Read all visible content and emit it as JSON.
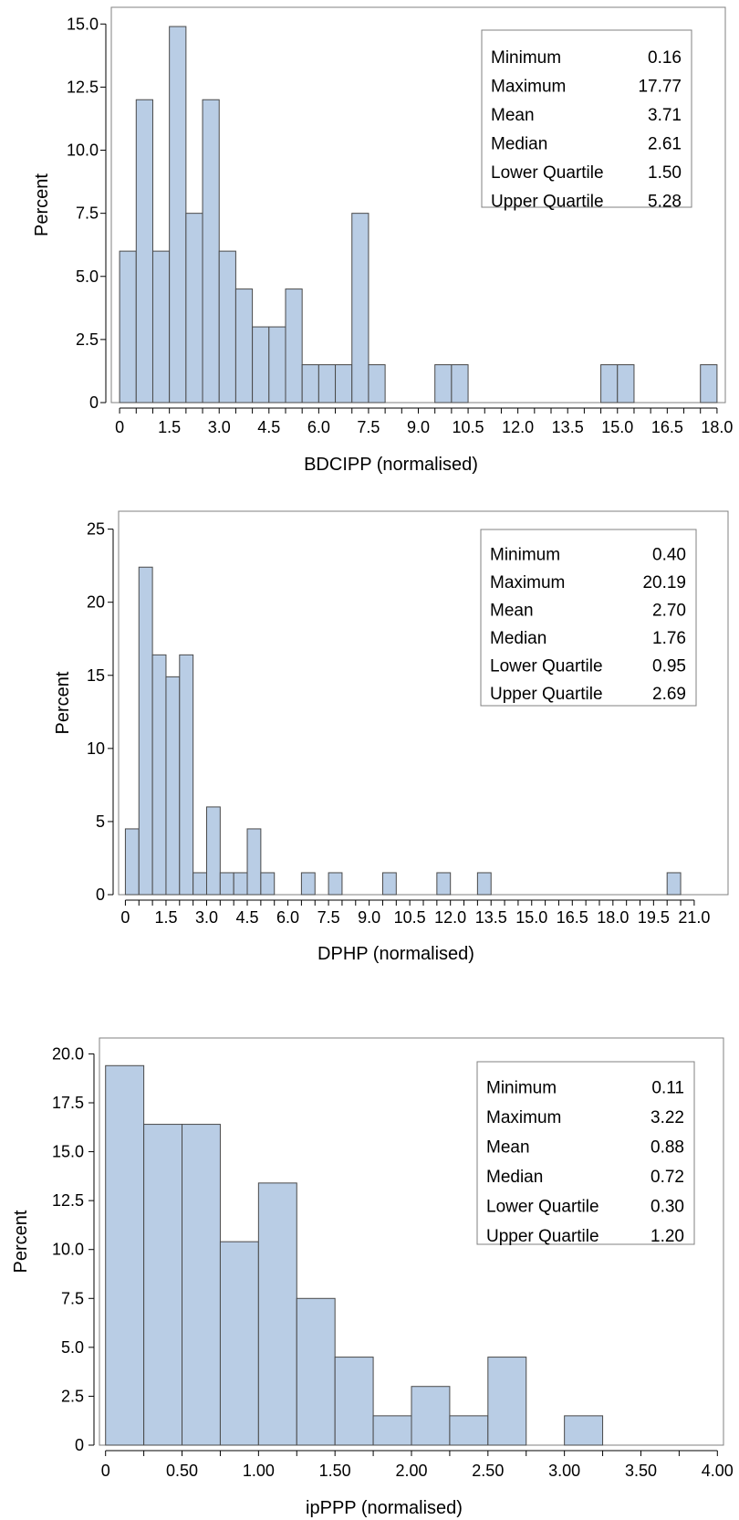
{
  "chart_data": [
    {
      "type": "bar",
      "xlabel": "BDCIPP (normalised)",
      "ylabel": "Percent",
      "bin_width": 0.5,
      "xlim": [
        -0.25,
        18.25
      ],
      "ylim": [
        0,
        15.3
      ],
      "x_ticks": [
        "0",
        "1.5",
        "3.0",
        "4.5",
        "6.0",
        "7.5",
        "9.0",
        "10.5",
        "12.0",
        "13.5",
        "15.0",
        "16.5",
        "18.0"
      ],
      "x_tick_values": [
        0,
        1.5,
        3.0,
        4.5,
        6.0,
        7.5,
        9.0,
        10.5,
        12.0,
        13.5,
        15.0,
        16.5,
        18.0
      ],
      "y_ticks": [
        "0",
        "2.5",
        "5.0",
        "7.5",
        "10.0",
        "12.5",
        "15.0"
      ],
      "y_tick_values": [
        0,
        2.5,
        5.0,
        7.5,
        10.0,
        12.5,
        15.0
      ],
      "bins": [
        {
          "center": 0.25,
          "value": 6.0
        },
        {
          "center": 0.75,
          "value": 12.0
        },
        {
          "center": 1.25,
          "value": 6.0
        },
        {
          "center": 1.75,
          "value": 14.9
        },
        {
          "center": 2.25,
          "value": 7.5
        },
        {
          "center": 2.75,
          "value": 12.0
        },
        {
          "center": 3.25,
          "value": 6.0
        },
        {
          "center": 3.75,
          "value": 4.5
        },
        {
          "center": 4.25,
          "value": 3.0
        },
        {
          "center": 4.75,
          "value": 3.0
        },
        {
          "center": 5.25,
          "value": 4.5
        },
        {
          "center": 5.75,
          "value": 1.5
        },
        {
          "center": 6.25,
          "value": 1.5
        },
        {
          "center": 6.75,
          "value": 1.5
        },
        {
          "center": 7.25,
          "value": 7.5
        },
        {
          "center": 7.75,
          "value": 1.5
        },
        {
          "center": 9.75,
          "value": 1.5
        },
        {
          "center": 10.25,
          "value": 1.5
        },
        {
          "center": 14.75,
          "value": 1.5
        },
        {
          "center": 15.25,
          "value": 1.5
        },
        {
          "center": 17.75,
          "value": 1.5
        }
      ],
      "stats": [
        {
          "label": "Minimum",
          "value": "0.16"
        },
        {
          "label": "Maximum",
          "value": "17.77"
        },
        {
          "label": "Mean",
          "value": "3.71"
        },
        {
          "label": "Median",
          "value": "2.61"
        },
        {
          "label": "Lower Quartile",
          "value": "1.50"
        },
        {
          "label": "Upper Quartile",
          "value": "5.28"
        }
      ],
      "legend_position": "top-right"
    },
    {
      "type": "bar",
      "xlabel": "DPHP (normalised)",
      "ylabel": "Percent",
      "bin_width": 0.5,
      "xlim": [
        -0.25,
        22.25
      ],
      "ylim": [
        0,
        25.6
      ],
      "x_ticks": [
        "0",
        "1.5",
        "3.0",
        "4.5",
        "6.0",
        "7.5",
        "9.0",
        "10.5",
        "12.0",
        "13.5",
        "15.0",
        "16.5",
        "18.0",
        "19.5",
        "21.0"
      ],
      "x_tick_values": [
        0,
        1.5,
        3.0,
        4.5,
        6.0,
        7.5,
        9.0,
        10.5,
        12.0,
        13.5,
        15.0,
        16.5,
        18.0,
        19.5,
        21.0
      ],
      "y_ticks": [
        "0",
        "5",
        "10",
        "15",
        "20",
        "25"
      ],
      "y_tick_values": [
        0,
        5,
        10,
        15,
        20,
        25
      ],
      "bins": [
        {
          "center": 0.25,
          "value": 4.5
        },
        {
          "center": 0.75,
          "value": 22.4
        },
        {
          "center": 1.25,
          "value": 16.4
        },
        {
          "center": 1.75,
          "value": 14.9
        },
        {
          "center": 2.25,
          "value": 16.4
        },
        {
          "center": 2.75,
          "value": 1.5
        },
        {
          "center": 3.25,
          "value": 6.0
        },
        {
          "center": 3.75,
          "value": 1.5
        },
        {
          "center": 4.25,
          "value": 1.5
        },
        {
          "center": 4.75,
          "value": 4.5
        },
        {
          "center": 5.25,
          "value": 1.5
        },
        {
          "center": 6.75,
          "value": 1.5
        },
        {
          "center": 7.75,
          "value": 1.5
        },
        {
          "center": 9.75,
          "value": 1.5
        },
        {
          "center": 11.75,
          "value": 1.5
        },
        {
          "center": 13.25,
          "value": 1.5
        },
        {
          "center": 20.25,
          "value": 1.5
        }
      ],
      "stats": [
        {
          "label": "Minimum",
          "value": "0.40"
        },
        {
          "label": "Maximum",
          "value": "20.19"
        },
        {
          "label": "Mean",
          "value": "2.70"
        },
        {
          "label": "Median",
          "value": "1.76"
        },
        {
          "label": "Lower Quartile",
          "value": "0.95"
        },
        {
          "label": "Upper Quartile",
          "value": "2.69"
        }
      ],
      "legend_position": "top-right"
    },
    {
      "type": "bar",
      "xlabel": "ipPPP (normalised)",
      "ylabel": "Percent",
      "bin_width": 0.25,
      "xlim": [
        -0.04,
        4.04
      ],
      "ylim": [
        0,
        20.3
      ],
      "x_ticks": [
        "0",
        "0.50",
        "1.00",
        "1.50",
        "2.00",
        "2.50",
        "3.00",
        "3.50",
        "4.00"
      ],
      "x_tick_values": [
        0,
        0.5,
        1.0,
        1.5,
        2.0,
        2.5,
        3.0,
        3.5,
        4.0
      ],
      "y_ticks": [
        "0",
        "2.5",
        "5.0",
        "7.5",
        "10.0",
        "12.5",
        "15.0",
        "17.5",
        "20.0"
      ],
      "y_tick_values": [
        0,
        2.5,
        5.0,
        7.5,
        10.0,
        12.5,
        15.0,
        17.5,
        20.0
      ],
      "bins": [
        {
          "center": 0.125,
          "value": 19.4
        },
        {
          "center": 0.375,
          "value": 16.4
        },
        {
          "center": 0.625,
          "value": 16.4
        },
        {
          "center": 0.875,
          "value": 10.4
        },
        {
          "center": 1.125,
          "value": 13.4
        },
        {
          "center": 1.375,
          "value": 7.5
        },
        {
          "center": 1.625,
          "value": 4.5
        },
        {
          "center": 1.875,
          "value": 1.5
        },
        {
          "center": 2.125,
          "value": 3.0
        },
        {
          "center": 2.375,
          "value": 1.5
        },
        {
          "center": 2.625,
          "value": 4.5
        },
        {
          "center": 3.125,
          "value": 1.5
        }
      ],
      "stats": [
        {
          "label": "Minimum",
          "value": "0.11"
        },
        {
          "label": "Maximum",
          "value": "3.22"
        },
        {
          "label": "Mean",
          "value": "0.88"
        },
        {
          "label": "Median",
          "value": "0.72"
        },
        {
          "label": "Lower Quartile",
          "value": "0.30"
        },
        {
          "label": "Upper Quartile",
          "value": "1.20"
        }
      ],
      "legend_position": "top-right"
    }
  ]
}
